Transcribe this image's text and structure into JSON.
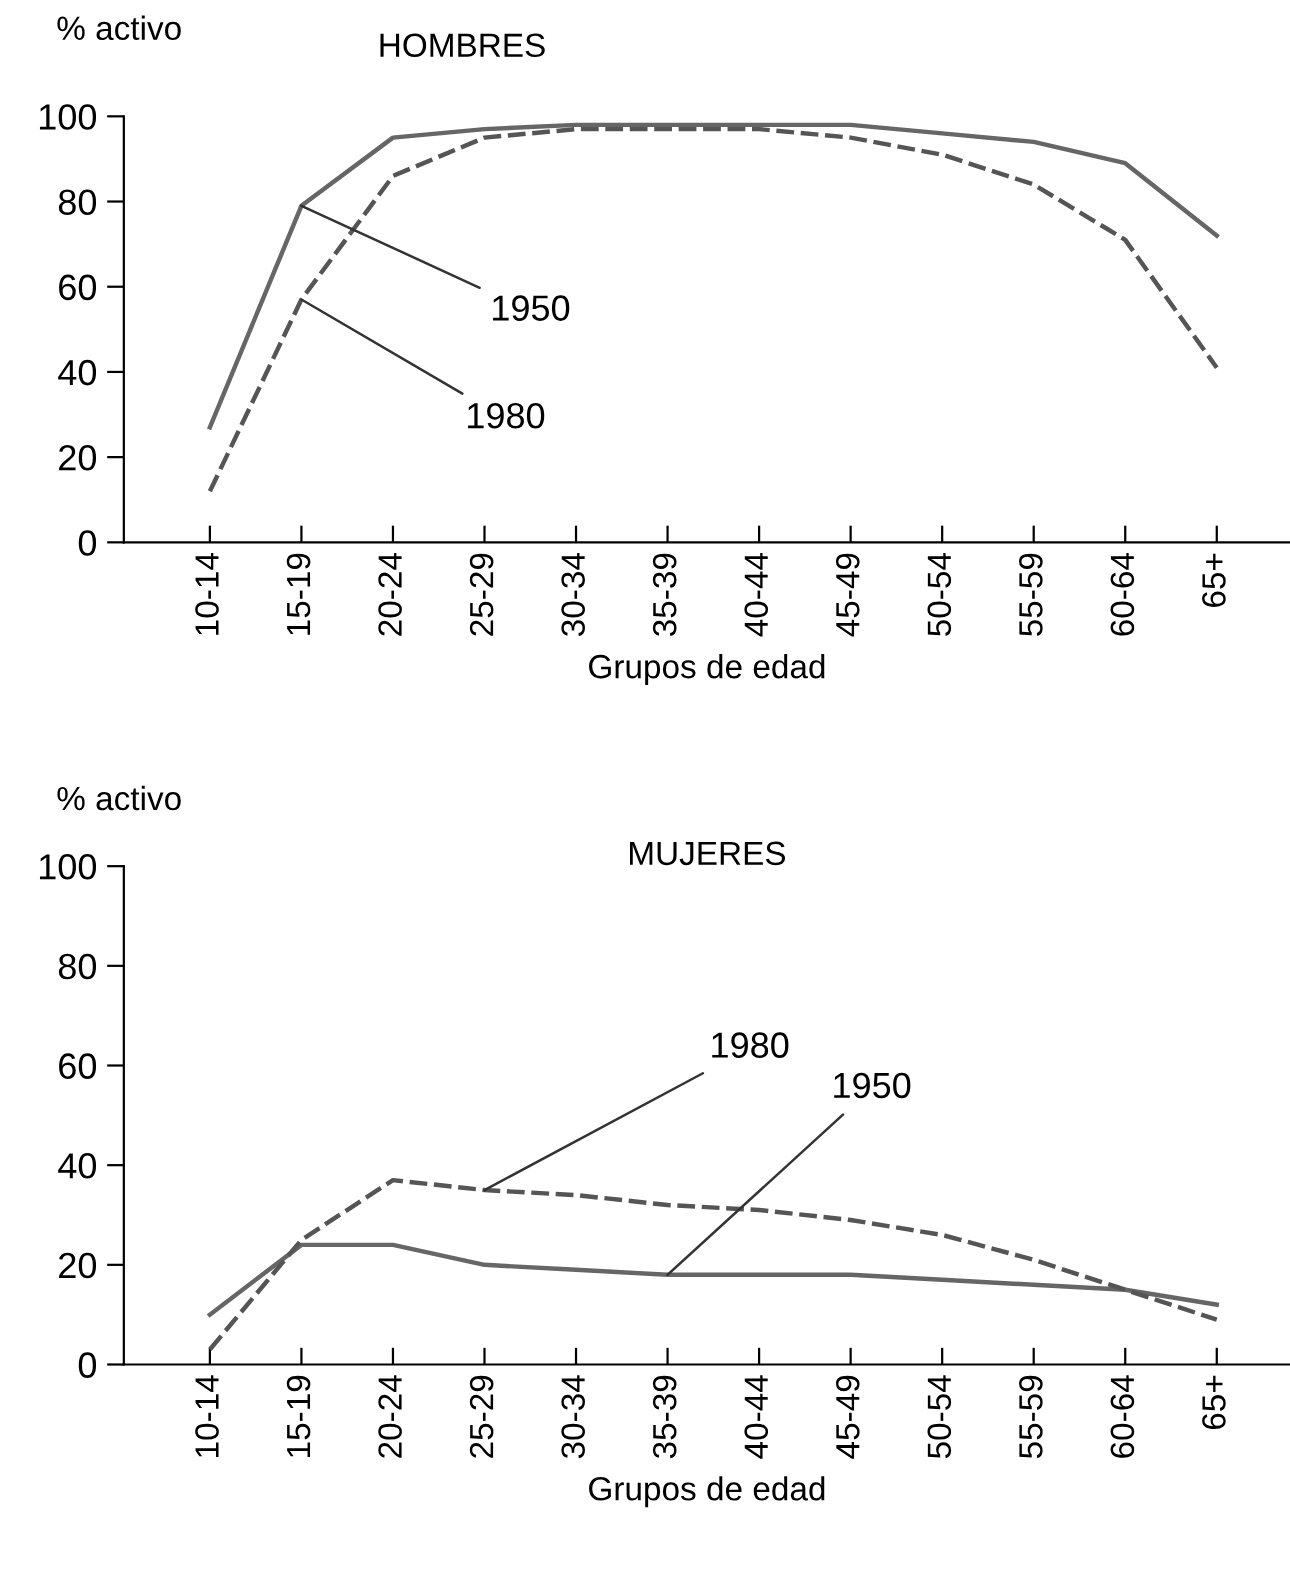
{
  "chart_data": [
    {
      "type": "line",
      "title": "HOMBRES",
      "ylabel": "% activo",
      "xlabel": "Grupos de edad",
      "categories": [
        "10-14",
        "15-19",
        "20-24",
        "25-29",
        "30-34",
        "35-39",
        "40-44",
        "45-49",
        "50-54",
        "55-59",
        "60-64",
        "65+"
      ],
      "series": [
        {
          "color": "#666666",
          "line_style": "solid",
          "values": [
            27,
            79,
            95,
            97,
            98,
            98,
            98,
            98,
            96,
            94,
            89,
            72
          ]
        },
        {
          "color": "#555555",
          "line_style": "dashed",
          "values": [
            12,
            57,
            86,
            95,
            97,
            97,
            97,
            95,
            91,
            84,
            71,
            41
          ]
        }
      ],
      "annotations": [
        {
          "text": "1950",
          "x": "15-19",
          "y": 79
        },
        {
          "text": "1980",
          "x": "15-19",
          "y": 57
        }
      ],
      "ylim": [
        0,
        100
      ],
      "yticks": [
        0,
        20,
        40,
        60,
        80,
        100
      ],
      "grid": false,
      "marker": "none"
    },
    {
      "type": "line",
      "title": "MUJERES",
      "ylabel": "% activo",
      "xlabel": "Grupos de edad",
      "categories": [
        "10-14",
        "15-19",
        "20-24",
        "25-29",
        "30-34",
        "35-39",
        "40-44",
        "45-49",
        "50-54",
        "55-59",
        "60-64",
        "65+"
      ],
      "series": [
        {
          "color": "#666666",
          "line_style": "solid",
          "values": [
            10,
            24,
            24,
            20,
            19,
            18,
            18,
            18,
            17,
            16,
            15,
            12
          ]
        },
        {
          "color": "#555555",
          "line_style": "dashed",
          "values": [
            3,
            25,
            37,
            35,
            34,
            32,
            31,
            29,
            26,
            21,
            15,
            9
          ]
        }
      ],
      "annotations": [
        {
          "text": "1980",
          "x": "25-29",
          "y": 35
        },
        {
          "text": "1950",
          "x": "35-39",
          "y": 18
        }
      ],
      "ylim": [
        0,
        100
      ],
      "yticks": [
        0,
        20,
        40,
        60,
        80,
        100
      ],
      "grid": false,
      "marker": "none"
    }
  ]
}
